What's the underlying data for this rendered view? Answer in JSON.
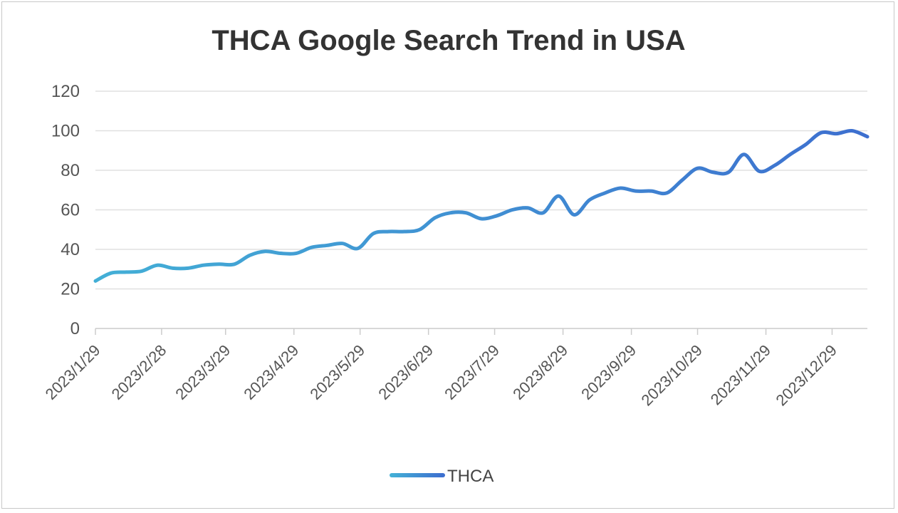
{
  "chart_data": {
    "type": "line",
    "title": "THCA Google Search Trend in USA",
    "xlabel": "",
    "ylabel": "",
    "ylim": [
      0,
      120
    ],
    "yticks": [
      0,
      20,
      40,
      60,
      80,
      100,
      120
    ],
    "grid": true,
    "legend_position": "bottom",
    "xtick_labels": [
      "2023/1/29",
      "2023/2/28",
      "2023/3/29",
      "2023/4/29",
      "2023/5/29",
      "2023/6/29",
      "2023/7/29",
      "2023/8/29",
      "2023/9/29",
      "2023/10/29",
      "2023/11/29",
      "2023/12/29"
    ],
    "colors": {
      "line_start": "#43afd6",
      "line_end": "#3d6fcf",
      "grid": "#e0e0e0",
      "axis": "#cccccc"
    },
    "series": [
      {
        "name": "THCA",
        "points": [
          {
            "x": "2023/1/29",
            "y": 24
          },
          {
            "x": "2023/2/5",
            "y": 28
          },
          {
            "x": "2023/2/12",
            "y": 28.5
          },
          {
            "x": "2023/2/19",
            "y": 29
          },
          {
            "x": "2023/2/26",
            "y": 32
          },
          {
            "x": "2023/3/5",
            "y": 30.5
          },
          {
            "x": "2023/3/12",
            "y": 30.5
          },
          {
            "x": "2023/3/19",
            "y": 32
          },
          {
            "x": "2023/3/26",
            "y": 32.5
          },
          {
            "x": "2023/4/2",
            "y": 32.5
          },
          {
            "x": "2023/4/9",
            "y": 37
          },
          {
            "x": "2023/4/16",
            "y": 39
          },
          {
            "x": "2023/4/23",
            "y": 38
          },
          {
            "x": "2023/4/30",
            "y": 38
          },
          {
            "x": "2023/5/7",
            "y": 41
          },
          {
            "x": "2023/5/14",
            "y": 42
          },
          {
            "x": "2023/5/21",
            "y": 43
          },
          {
            "x": "2023/5/28",
            "y": 40.5
          },
          {
            "x": "2023/6/4",
            "y": 48
          },
          {
            "x": "2023/6/11",
            "y": 49
          },
          {
            "x": "2023/6/18",
            "y": 49
          },
          {
            "x": "2023/6/25",
            "y": 50
          },
          {
            "x": "2023/7/2",
            "y": 56
          },
          {
            "x": "2023/7/9",
            "y": 58.5
          },
          {
            "x": "2023/7/16",
            "y": 58.5
          },
          {
            "x": "2023/7/23",
            "y": 55.5
          },
          {
            "x": "2023/7/30",
            "y": 57
          },
          {
            "x": "2023/8/6",
            "y": 60
          },
          {
            "x": "2023/8/13",
            "y": 61
          },
          {
            "x": "2023/8/20",
            "y": 58.5
          },
          {
            "x": "2023/8/27",
            "y": 67
          },
          {
            "x": "2023/9/3",
            "y": 57.5
          },
          {
            "x": "2023/9/10",
            "y": 65
          },
          {
            "x": "2023/9/17",
            "y": 68.5
          },
          {
            "x": "2023/9/24",
            "y": 71
          },
          {
            "x": "2023/10/1",
            "y": 69.5
          },
          {
            "x": "2023/10/8",
            "y": 69.5
          },
          {
            "x": "2023/10/15",
            "y": 68.5
          },
          {
            "x": "2023/10/22",
            "y": 75
          },
          {
            "x": "2023/10/29",
            "y": 81
          },
          {
            "x": "2023/11/5",
            "y": 79
          },
          {
            "x": "2023/11/12",
            "y": 79
          },
          {
            "x": "2023/11/19",
            "y": 88
          },
          {
            "x": "2023/11/26",
            "y": 79.5
          },
          {
            "x": "2023/12/3",
            "y": 82.5
          },
          {
            "x": "2023/12/10",
            "y": 88
          },
          {
            "x": "2023/12/17",
            "y": 93
          },
          {
            "x": "2023/12/24",
            "y": 99
          },
          {
            "x": "2023/12/31",
            "y": 98.5
          },
          {
            "x": "2024/1/7",
            "y": 100
          },
          {
            "x": "2024/1/14",
            "y": 97
          }
        ]
      }
    ]
  }
}
